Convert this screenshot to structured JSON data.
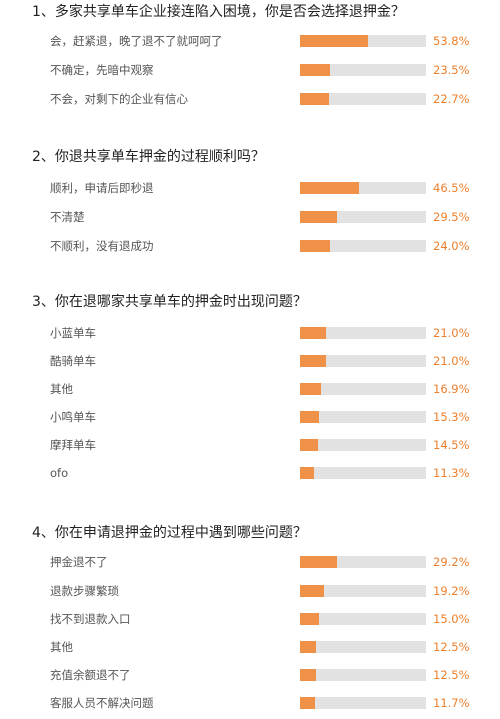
{
  "chart_data": [
    {
      "type": "bar",
      "title": "1、多家共享单车企业接连陷入困境，你是否会选择退押金？",
      "categories": [
        "会，赶紧退，晚了退不了就呵呵了",
        "不确定，先暗中观察",
        "不会，对剩下的企业有信心"
      ],
      "values": [
        53.8,
        23.5,
        22.7
      ],
      "labels": [
        "53.8%",
        "23.5%",
        "22.7%"
      ]
    },
    {
      "type": "bar",
      "title": "2、你退共享单车押金的过程顺利吗？",
      "categories": [
        "顺利，申请后即秒退",
        "不清楚",
        "不顺利，没有退成功"
      ],
      "values": [
        46.5,
        29.5,
        24.0
      ],
      "labels": [
        "46.5%",
        "29.5%",
        "24.0%"
      ]
    },
    {
      "type": "bar",
      "title": "3、你在退哪家共享单车的押金时出现问题？",
      "categories": [
        "小蓝单车",
        "酷骑单车",
        "其他",
        "小鸣单车",
        "摩拜单车",
        "ofo"
      ],
      "values": [
        21.0,
        21.0,
        16.9,
        15.3,
        14.5,
        11.3
      ],
      "labels": [
        "21.0%",
        "21.0%",
        "16.9%",
        "15.3%",
        "14.5%",
        "11.3%"
      ]
    },
    {
      "type": "bar",
      "title": "4、你在申请退押金的过程中遇到哪些问题？",
      "categories": [
        "押金退不了",
        "退款步骤繁琐",
        "找不到退款入口",
        "其他",
        "充值余额退不了",
        "客服人员不解决问题"
      ],
      "values": [
        29.2,
        19.2,
        15.0,
        12.5,
        12.5,
        11.7
      ],
      "labels": [
        "29.2%",
        "19.2%",
        "15.0%",
        "12.5%",
        "12.5%",
        "11.7%"
      ]
    }
  ],
  "colors": {
    "bar": "#f0914a",
    "track": "#e2e2e2",
    "percent_text": "#ec7f2c"
  }
}
